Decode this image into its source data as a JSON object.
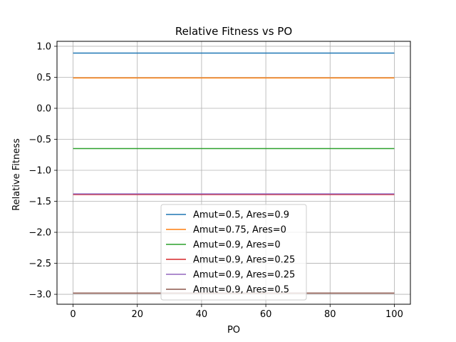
{
  "chart_data": {
    "type": "line",
    "title": "Relative Fitness vs PO",
    "xlabel": "PO",
    "ylabel": "Relative Fitness",
    "xlim": [
      -5,
      105
    ],
    "ylim": [
      -3.16,
      1.08
    ],
    "xticks": [
      0,
      20,
      40,
      60,
      80,
      100
    ],
    "yticks": [
      1.0,
      0.5,
      0.0,
      -0.5,
      -1.0,
      -1.5,
      -2.0,
      -2.5,
      -3.0
    ],
    "ytick_labels": [
      "1.0",
      "0.5",
      "0.0",
      "−0.5",
      "−1.0",
      "−1.5",
      "−2.0",
      "−2.5",
      "−3.0"
    ],
    "grid": true,
    "legend_position": "lower-center",
    "series": [
      {
        "name": "Amut=0.5, Ares=0.9",
        "color": "#1f77b4",
        "x": [
          0,
          100
        ],
        "y": [
          0.89,
          0.89
        ]
      },
      {
        "name": "Amut=0.75, Ares=0",
        "color": "#ff7f0e",
        "x": [
          0,
          100
        ],
        "y": [
          0.49,
          0.49
        ]
      },
      {
        "name": "Amut=0.9, Ares=0",
        "color": "#2ca02c",
        "x": [
          0,
          100
        ],
        "y": [
          -0.65,
          -0.65
        ]
      },
      {
        "name": "Amut=0.9, Ares=0.25",
        "color": "#d62728",
        "x": [
          0,
          100
        ],
        "y": [
          -1.39,
          -1.39
        ]
      },
      {
        "name": "Amut=0.9, Ares=0.25",
        "color": "#9467bd",
        "x": [
          0,
          100
        ],
        "y": [
          -1.38,
          -1.38
        ]
      },
      {
        "name": "Amut=0.9, Ares=0.5",
        "color": "#8c564b",
        "x": [
          0,
          100
        ],
        "y": [
          -2.98,
          -2.98
        ]
      }
    ]
  }
}
